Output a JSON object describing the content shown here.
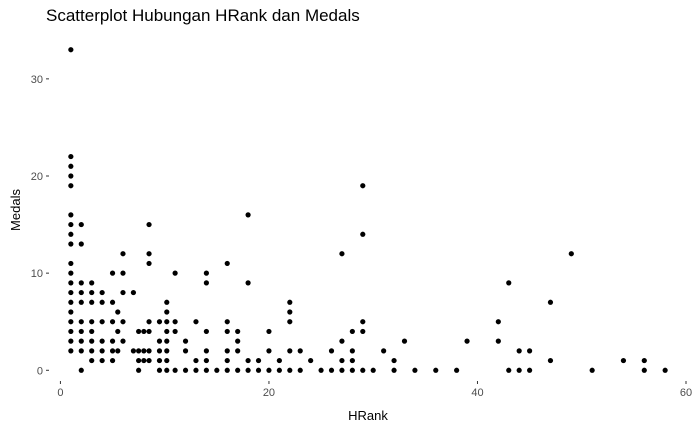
{
  "chart_data": {
    "type": "scatter",
    "title": "Scatterplot Hubungan HRank dan Medals",
    "xlabel": "HRank",
    "ylabel": "Medals",
    "xlim": [
      -1,
      60
    ],
    "ylim": [
      -1,
      34
    ],
    "x_ticks": [
      0,
      20,
      40,
      60
    ],
    "y_ticks": [
      0,
      10,
      20,
      30
    ],
    "grid": false,
    "point_color": "#000000",
    "points": [
      [
        1,
        33
      ],
      [
        1,
        22
      ],
      [
        1,
        21
      ],
      [
        1,
        20
      ],
      [
        1,
        19
      ],
      [
        1,
        16
      ],
      [
        1,
        15
      ],
      [
        1,
        14
      ],
      [
        1,
        13
      ],
      [
        1,
        11
      ],
      [
        1,
        10
      ],
      [
        1,
        9
      ],
      [
        1,
        8
      ],
      [
        1,
        7
      ],
      [
        1,
        6
      ],
      [
        1,
        5
      ],
      [
        1,
        4
      ],
      [
        1,
        3
      ],
      [
        1,
        2
      ],
      [
        2,
        15
      ],
      [
        2,
        13
      ],
      [
        2,
        9
      ],
      [
        2,
        8
      ],
      [
        2,
        7
      ],
      [
        2,
        5
      ],
      [
        2,
        4
      ],
      [
        2,
        3
      ],
      [
        2,
        2
      ],
      [
        2,
        0
      ],
      [
        3,
        9
      ],
      [
        3,
        8
      ],
      [
        3,
        7
      ],
      [
        3,
        5
      ],
      [
        3,
        4
      ],
      [
        3,
        3
      ],
      [
        3,
        2
      ],
      [
        3,
        1
      ],
      [
        4,
        8
      ],
      [
        4,
        7
      ],
      [
        4,
        5
      ],
      [
        4,
        3
      ],
      [
        4,
        2
      ],
      [
        4,
        1
      ],
      [
        5,
        10
      ],
      [
        5,
        7
      ],
      [
        5,
        5
      ],
      [
        5,
        3
      ],
      [
        5,
        2
      ],
      [
        5,
        1
      ],
      [
        5.5,
        6
      ],
      [
        5.5,
        4
      ],
      [
        5.5,
        2
      ],
      [
        6,
        12
      ],
      [
        6,
        10
      ],
      [
        6,
        8
      ],
      [
        6,
        5
      ],
      [
        6,
        3
      ],
      [
        7,
        8
      ],
      [
        7,
        2
      ],
      [
        7.5,
        4
      ],
      [
        7.5,
        2
      ],
      [
        7.5,
        1
      ],
      [
        7.5,
        0
      ],
      [
        8,
        4
      ],
      [
        8,
        2
      ],
      [
        8,
        1
      ],
      [
        8.5,
        15
      ],
      [
        8.5,
        12
      ],
      [
        8.5,
        11
      ],
      [
        8.5,
        5
      ],
      [
        8.5,
        4
      ],
      [
        8.5,
        2
      ],
      [
        8.5,
        1
      ],
      [
        9.5,
        5
      ],
      [
        9.5,
        3
      ],
      [
        9.5,
        2
      ],
      [
        9.5,
        1
      ],
      [
        9.5,
        0
      ],
      [
        10.2,
        7
      ],
      [
        10.2,
        6
      ],
      [
        10.2,
        5
      ],
      [
        10.2,
        4
      ],
      [
        10.2,
        3
      ],
      [
        10.2,
        2
      ],
      [
        10.2,
        1
      ],
      [
        10.2,
        0
      ],
      [
        11,
        10
      ],
      [
        11,
        5
      ],
      [
        11,
        4
      ],
      [
        11,
        0
      ],
      [
        12,
        3
      ],
      [
        12,
        2
      ],
      [
        12,
        0
      ],
      [
        13,
        5
      ],
      [
        13,
        1
      ],
      [
        13,
        0
      ],
      [
        14,
        10
      ],
      [
        14,
        9
      ],
      [
        14,
        4
      ],
      [
        14,
        2
      ],
      [
        14,
        1
      ],
      [
        14,
        0
      ],
      [
        15,
        0
      ],
      [
        16,
        11
      ],
      [
        16,
        5
      ],
      [
        16,
        4
      ],
      [
        16,
        2
      ],
      [
        16,
        1
      ],
      [
        16,
        0
      ],
      [
        17,
        4
      ],
      [
        17,
        3
      ],
      [
        17,
        2
      ],
      [
        17,
        0
      ],
      [
        18,
        16
      ],
      [
        18,
        9
      ],
      [
        18,
        1
      ],
      [
        18,
        0
      ],
      [
        19,
        1
      ],
      [
        19,
        0
      ],
      [
        20,
        4
      ],
      [
        20,
        2
      ],
      [
        20,
        0
      ],
      [
        21,
        1
      ],
      [
        21,
        0
      ],
      [
        22,
        7
      ],
      [
        22,
        6
      ],
      [
        22,
        5
      ],
      [
        22,
        2
      ],
      [
        22,
        0
      ],
      [
        23,
        2
      ],
      [
        23,
        0
      ],
      [
        24,
        1
      ],
      [
        25,
        0
      ],
      [
        26,
        2
      ],
      [
        26,
        0
      ],
      [
        27,
        12
      ],
      [
        27,
        3
      ],
      [
        27,
        1
      ],
      [
        27,
        0
      ],
      [
        28,
        4
      ],
      [
        28,
        2
      ],
      [
        28,
        1
      ],
      [
        28,
        0
      ],
      [
        29,
        19
      ],
      [
        29,
        14
      ],
      [
        29,
        5
      ],
      [
        29,
        4
      ],
      [
        29,
        0
      ],
      [
        30,
        0
      ],
      [
        31,
        2
      ],
      [
        32,
        1
      ],
      [
        32,
        0
      ],
      [
        33,
        3
      ],
      [
        34,
        0
      ],
      [
        36,
        0
      ],
      [
        38,
        0
      ],
      [
        39,
        3
      ],
      [
        42,
        5
      ],
      [
        42,
        3
      ],
      [
        43,
        9
      ],
      [
        43,
        0
      ],
      [
        44,
        2
      ],
      [
        44,
        0
      ],
      [
        45,
        2
      ],
      [
        45,
        0
      ],
      [
        47,
        7
      ],
      [
        47,
        1
      ],
      [
        49,
        12
      ],
      [
        51,
        0
      ],
      [
        54,
        1
      ],
      [
        56,
        1
      ],
      [
        56,
        0
      ],
      [
        58,
        0
      ]
    ]
  }
}
